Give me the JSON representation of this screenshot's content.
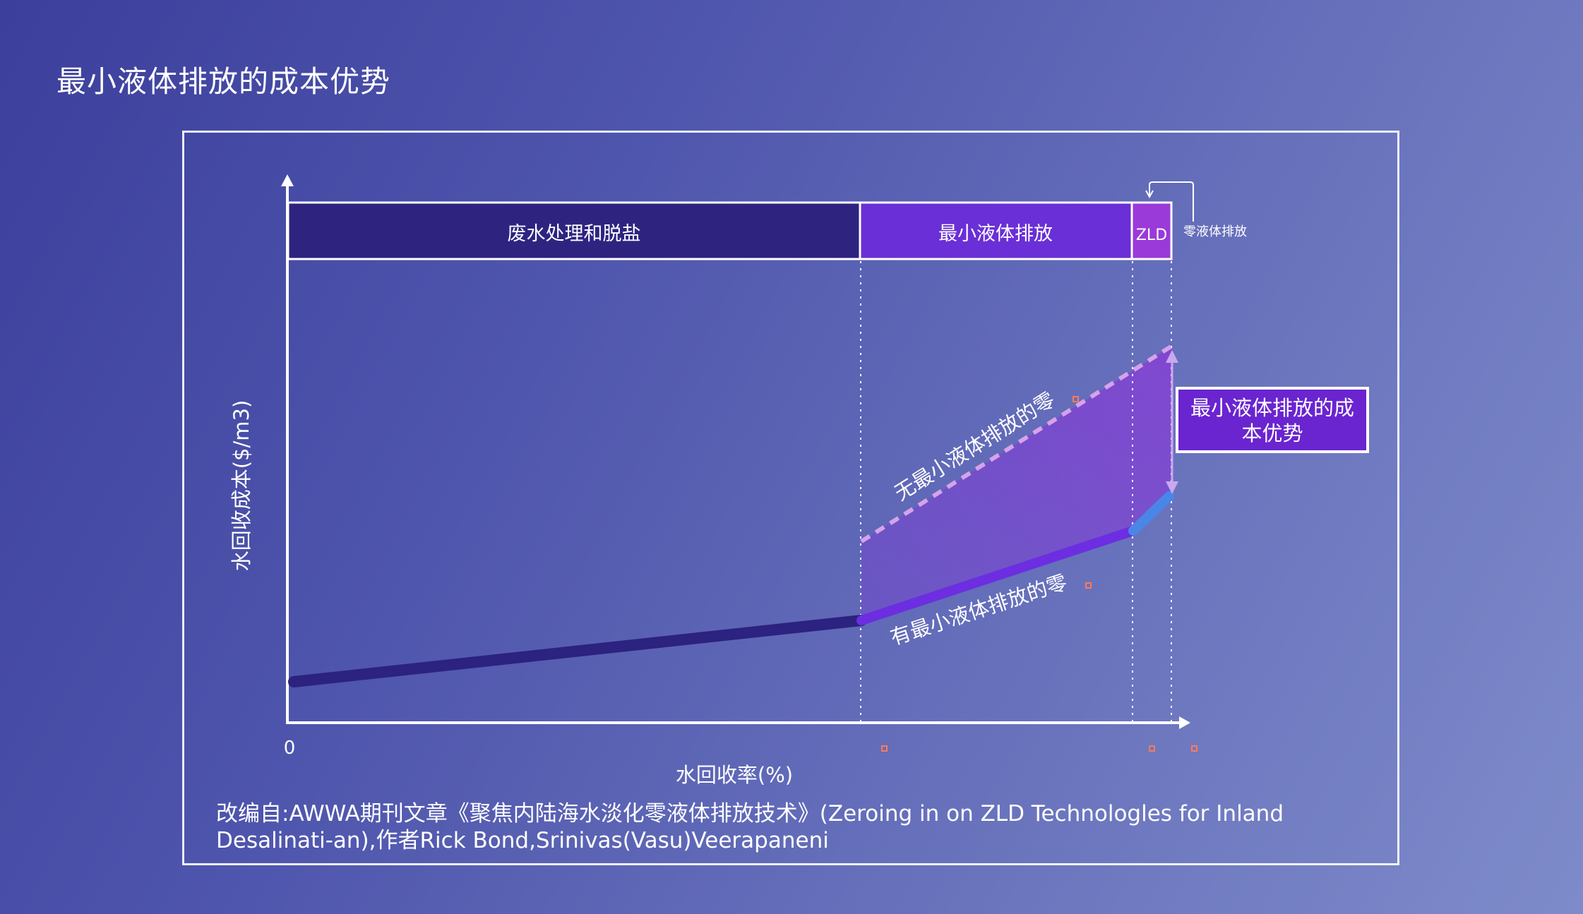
{
  "title": "最小液体排放的成本优势",
  "diagram": {
    "zones": {
      "wastewater": "废水处理和脱盐",
      "mld": "最小液体排放",
      "zld": "ZLD"
    },
    "zld_callout": "零液体排放",
    "y_axis_label": "水回收成本($/m3)",
    "x_axis_label": "水回收率(%)",
    "origin_label": "0",
    "line_without": "无最小液体排放的零",
    "line_with": "有最小液体排放的零",
    "advantage_box": [
      "最小液体排放的成",
      "本优势"
    ]
  },
  "source_note": "改编自:AWWA期刊文章《聚焦内陆海水淡化零液体排放技术》(Zeroing in on ZLD Technologles for Inland Desalinati-an),作者Rick Bond,Srinivas(Vasu)Veerapaneni",
  "colors": {
    "wastewater_zone": "#2e2480",
    "mld_zone": "#6a2fd6",
    "zld_zone": "#9a3ad8",
    "baseline_line": "#2c2280",
    "with_mld_line": "#6c2ee0",
    "zld_segment": "#4a86e8",
    "without_mld_dashed": "#d6a2ea",
    "advantage_box": "#6a24d0"
  }
}
